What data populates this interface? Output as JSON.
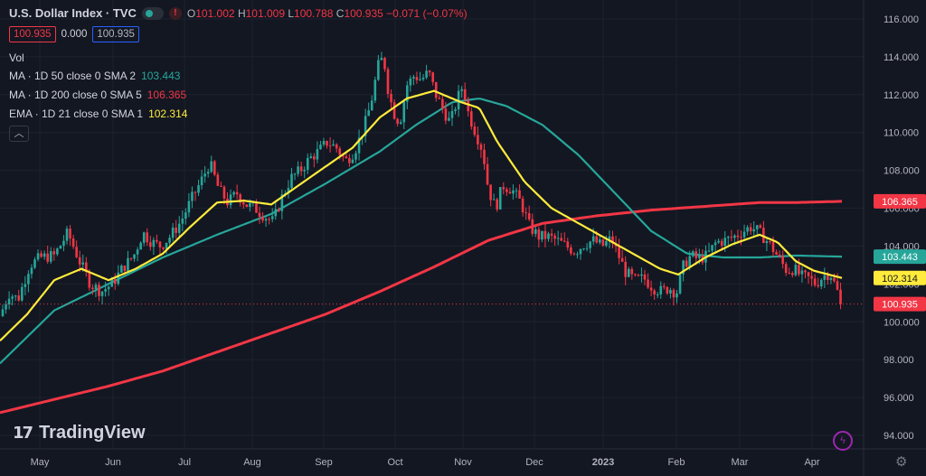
{
  "header": {
    "symbol": "U.S. Dollar Index · TVC",
    "ohlc": {
      "o_label": "O",
      "o": "101.002",
      "h_label": "H",
      "h": "101.009",
      "l_label": "L",
      "l": "100.788",
      "c_label": "C",
      "c": "100.935",
      "change": "−0.071 (−0.07%)"
    },
    "price_box": "100.935",
    "spread": "0.000",
    "price_box2": "100.935"
  },
  "indicators": {
    "vol_label": "Vol",
    "ma50": {
      "label": "MA · 1D 50 close 0 SMA 2",
      "value": "103.443",
      "color": "#26a69a"
    },
    "ma200": {
      "label": "MA · 1D 200 close 0 SMA 5",
      "value": "106.365",
      "color": "#f23645"
    },
    "ema21": {
      "label": "EMA · 1D 21 close 0 SMA 1",
      "value": "102.314",
      "color": "#ffeb3b"
    },
    "collapse_icon": "chevron-up-icon"
  },
  "branding": {
    "logo_text": "TradingView"
  },
  "chart_data": {
    "type": "candlestick",
    "ylim": [
      94,
      116
    ],
    "yticks": [
      "94.000",
      "96.000",
      "98.000",
      "100.000",
      "102.000",
      "104.000",
      "106.000",
      "108.000",
      "110.000",
      "112.000",
      "114.000",
      "116.000"
    ],
    "xticks": [
      "May",
      "Jun",
      "Jul",
      "Aug",
      "Sep",
      "Oct",
      "Nov",
      "Dec",
      "2023",
      "Feb",
      "Mar",
      "Apr"
    ],
    "last_price": 100.935,
    "price_labels": [
      {
        "value": 106.365,
        "text": "106.365",
        "color": "#f23645"
      },
      {
        "value": 103.443,
        "text": "103.443",
        "color": "#26a69a"
      },
      {
        "value": 102.314,
        "text": "102.314",
        "color": "#ffeb3b"
      },
      {
        "value": 100.935,
        "text": "100.935",
        "color": "#f23645"
      }
    ],
    "close_path": [
      [
        0,
        100.3
      ],
      [
        10,
        101.5
      ],
      [
        20,
        101.2
      ],
      [
        33,
        103.0
      ],
      [
        45,
        103.4
      ],
      [
        60,
        103.5
      ],
      [
        75,
        104.7
      ],
      [
        88,
        103.2
      ],
      [
        100,
        102.0
      ],
      [
        112,
        101.6
      ],
      [
        124,
        102.0
      ],
      [
        135,
        102.8
      ],
      [
        148,
        103.5
      ],
      [
        158,
        104.7
      ],
      [
        168,
        104.2
      ],
      [
        178,
        104.0
      ],
      [
        188,
        104.5
      ],
      [
        200,
        105.3
      ],
      [
        212,
        106.5
      ],
      [
        222,
        107.4
      ],
      [
        232,
        108.4
      ],
      [
        242,
        107.0
      ],
      [
        252,
        106.3
      ],
      [
        262,
        106.8
      ],
      [
        272,
        106.2
      ],
      [
        282,
        106.0
      ],
      [
        292,
        105.6
      ],
      [
        302,
        105.3
      ],
      [
        312,
        106.6
      ],
      [
        322,
        107.6
      ],
      [
        332,
        108.0
      ],
      [
        342,
        108.6
      ],
      [
        352,
        109.0
      ],
      [
        362,
        109.5
      ],
      [
        372,
        109.2
      ],
      [
        382,
        108.5
      ],
      [
        392,
        109.0
      ],
      [
        402,
        110.2
      ],
      [
        410,
        111.5
      ],
      [
        418,
        113.5
      ],
      [
        424,
        114.0
      ],
      [
        430,
        112.0
      ],
      [
        436,
        111.0
      ],
      [
        442,
        110.5
      ],
      [
        450,
        112.5
      ],
      [
        458,
        113.0
      ],
      [
        466,
        112.8
      ],
      [
        474,
        113.2
      ],
      [
        482,
        112.0
      ],
      [
        490,
        111.2
      ],
      [
        498,
        110.5
      ],
      [
        506,
        111.8
      ],
      [
        512,
        112.5
      ],
      [
        518,
        111.0
      ],
      [
        526,
        110.0
      ],
      [
        534,
        109.0
      ],
      [
        540,
        107.0
      ],
      [
        548,
        106.0
      ],
      [
        556,
        107.2
      ],
      [
        566,
        107.0
      ],
      [
        576,
        106.3
      ],
      [
        586,
        105.0
      ],
      [
        596,
        104.5
      ],
      [
        606,
        104.5
      ],
      [
        616,
        104.3
      ],
      [
        626,
        104.0
      ],
      [
        636,
        103.7
      ],
      [
        646,
        104.1
      ],
      [
        656,
        104.3
      ],
      [
        666,
        104.0
      ],
      [
        676,
        104.4
      ],
      [
        684,
        103.5
      ],
      [
        692,
        102.6
      ],
      [
        702,
        102.2
      ],
      [
        712,
        102.3
      ],
      [
        722,
        101.8
      ],
      [
        732,
        101.6
      ],
      [
        740,
        101.8
      ],
      [
        748,
        101.5
      ],
      [
        756,
        103.0
      ],
      [
        764,
        103.5
      ],
      [
        772,
        103.3
      ],
      [
        782,
        103.5
      ],
      [
        792,
        104.2
      ],
      [
        802,
        104.3
      ],
      [
        812,
        104.5
      ],
      [
        822,
        104.8
      ],
      [
        830,
        105.0
      ],
      [
        838,
        104.8
      ],
      [
        846,
        104.4
      ],
      [
        854,
        103.9
      ],
      [
        862,
        103.3
      ],
      [
        870,
        102.7
      ],
      [
        878,
        102.8
      ],
      [
        886,
        102.4
      ],
      [
        894,
        102.3
      ],
      [
        902,
        102.0
      ],
      [
        910,
        102.4
      ],
      [
        918,
        102.6
      ],
      [
        926,
        101.6
      ],
      [
        931,
        100.935
      ]
    ],
    "series": [
      {
        "name": "MA · 1D 50 close 0 SMA 2",
        "color": "#26a69a",
        "points": [
          [
            0,
            97.8
          ],
          [
            60,
            100.6
          ],
          [
            120,
            102.0
          ],
          [
            180,
            103.4
          ],
          [
            240,
            104.6
          ],
          [
            300,
            105.7
          ],
          [
            360,
            107.3
          ],
          [
            420,
            109.0
          ],
          [
            460,
            110.4
          ],
          [
            500,
            111.6
          ],
          [
            530,
            111.8
          ],
          [
            560,
            111.4
          ],
          [
            600,
            110.4
          ],
          [
            640,
            108.8
          ],
          [
            680,
            106.8
          ],
          [
            720,
            104.8
          ],
          [
            760,
            103.6
          ],
          [
            800,
            103.4
          ],
          [
            840,
            103.4
          ],
          [
            880,
            103.5
          ],
          [
            931,
            103.443
          ]
        ]
      },
      {
        "name": "MA · 1D 200 close 0 SMA 5",
        "color": "#f23645",
        "points": [
          [
            0,
            95.2
          ],
          [
            60,
            95.9
          ],
          [
            120,
            96.6
          ],
          [
            180,
            97.4
          ],
          [
            240,
            98.4
          ],
          [
            300,
            99.4
          ],
          [
            360,
            100.4
          ],
          [
            420,
            101.6
          ],
          [
            480,
            102.9
          ],
          [
            540,
            104.3
          ],
          [
            600,
            105.2
          ],
          [
            660,
            105.6
          ],
          [
            720,
            105.9
          ],
          [
            780,
            106.1
          ],
          [
            840,
            106.3
          ],
          [
            880,
            106.3
          ],
          [
            931,
            106.365
          ]
        ]
      },
      {
        "name": "EMA · 1D 21 close 0 SMA 1",
        "color": "#ffeb3b",
        "points": [
          [
            0,
            99.0
          ],
          [
            30,
            100.4
          ],
          [
            60,
            102.2
          ],
          [
            90,
            102.8
          ],
          [
            120,
            102.2
          ],
          [
            150,
            102.8
          ],
          [
            180,
            103.6
          ],
          [
            210,
            105.0
          ],
          [
            240,
            106.3
          ],
          [
            270,
            106.4
          ],
          [
            300,
            106.2
          ],
          [
            330,
            107.2
          ],
          [
            360,
            108.2
          ],
          [
            390,
            109.2
          ],
          [
            420,
            110.8
          ],
          [
            450,
            111.8
          ],
          [
            480,
            112.2
          ],
          [
            510,
            111.6
          ],
          [
            530,
            111.3
          ],
          [
            550,
            109.5
          ],
          [
            580,
            107.4
          ],
          [
            610,
            106.0
          ],
          [
            640,
            105.2
          ],
          [
            670,
            104.4
          ],
          [
            700,
            103.6
          ],
          [
            730,
            102.8
          ],
          [
            750,
            102.5
          ],
          [
            780,
            103.4
          ],
          [
            810,
            104.1
          ],
          [
            840,
            104.6
          ],
          [
            860,
            104.2
          ],
          [
            880,
            103.2
          ],
          [
            900,
            102.7
          ],
          [
            931,
            102.314
          ]
        ]
      }
    ]
  }
}
